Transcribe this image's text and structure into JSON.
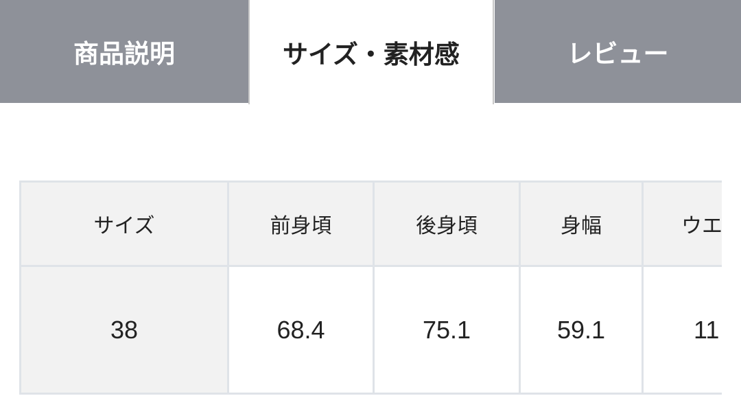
{
  "tabs": [
    {
      "label": "商品説明",
      "active": false
    },
    {
      "label": "サイズ・素材感",
      "active": true
    },
    {
      "label": "レビュー",
      "active": false
    }
  ],
  "size_table": {
    "headers": [
      "サイズ",
      "前身頃",
      "後身頃",
      "身幅",
      "ウエ"
    ],
    "rows": [
      [
        "38",
        "68.4",
        "75.1",
        "59.1",
        "11"
      ]
    ]
  },
  "colors": {
    "tab_inactive": "#8e9199",
    "header_bg": "#f2f2f2",
    "border": "#dfe3e8"
  }
}
